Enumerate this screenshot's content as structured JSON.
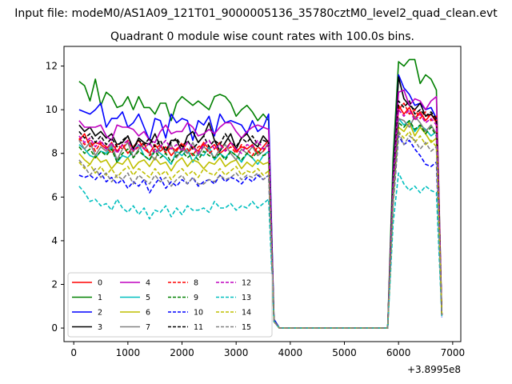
{
  "figure": {
    "suptitle": "Input file: modeM0/AS1A09_121T01_9000005136_35780cztM0_level2_quad_clean.evt"
  },
  "chart_data": {
    "type": "line",
    "title": "Quadrant 0 module wise count rates with 100.0s bins.",
    "xlabel": "",
    "ylabel": "",
    "x_offset_label": "+3.8995e8",
    "xlim": [
      -180,
      7150
    ],
    "ylim": [
      -0.62,
      12.9
    ],
    "xticks": [
      0,
      1000,
      2000,
      3000,
      4000,
      5000,
      6000,
      7000
    ],
    "yticks": [
      0,
      2,
      4,
      6,
      8,
      10,
      12
    ],
    "grid": false,
    "legend": {
      "placement": "lower-left",
      "columns": 4
    },
    "x": [
      100,
      200,
      300,
      400,
      500,
      600,
      700,
      800,
      900,
      1000,
      1100,
      1200,
      1300,
      1400,
      1500,
      1600,
      1700,
      1800,
      1900,
      2000,
      2100,
      2200,
      2300,
      2400,
      2500,
      2600,
      2700,
      2800,
      2900,
      3000,
      3100,
      3200,
      3300,
      3400,
      3500,
      3600,
      3700,
      3800,
      3900,
      4000,
      4100,
      4200,
      4300,
      4400,
      4500,
      4600,
      4700,
      4800,
      4900,
      5000,
      5100,
      5200,
      5300,
      5400,
      5500,
      5600,
      5700,
      5800,
      5900,
      6000,
      6100,
      6200,
      6300,
      6400,
      6500,
      6600,
      6700,
      6800
    ],
    "series": [
      {
        "name": "0",
        "color": "#ff0000",
        "dash": "solid",
        "values": [
          8.6,
          8.9,
          8.3,
          8.5,
          8.4,
          8.2,
          8.5,
          8.1,
          8.4,
          8.0,
          8.3,
          8.6,
          8.2,
          8.0,
          8.4,
          8.1,
          8.3,
          7.9,
          8.2,
          8.4,
          8.0,
          8.3,
          8.1,
          8.5,
          8.2,
          8.4,
          8.0,
          8.2,
          8.5,
          8.1,
          8.3,
          8.2,
          8.4,
          8.0,
          8.3,
          8.6,
          0.3,
          0.0,
          0.0,
          0.0,
          0.0,
          0.0,
          0.0,
          0.0,
          0.0,
          0.0,
          0.0,
          0.0,
          0.0,
          0.0,
          0.0,
          0.0,
          0.0,
          0.0,
          0.0,
          0.0,
          0.0,
          0.0,
          6.5,
          10.2,
          9.8,
          10.1,
          9.6,
          9.9,
          9.5,
          9.8,
          9.4,
          0.6
        ]
      },
      {
        "name": "1",
        "color": "#008000",
        "dash": "solid",
        "values": [
          11.3,
          11.1,
          10.4,
          11.4,
          10.2,
          10.8,
          10.6,
          10.1,
          10.2,
          10.6,
          10.0,
          10.6,
          10.1,
          10.1,
          9.8,
          10.3,
          10.3,
          9.5,
          10.3,
          10.6,
          10.4,
          10.2,
          10.4,
          10.2,
          10.0,
          10.6,
          10.7,
          10.6,
          10.3,
          9.7,
          10.0,
          10.2,
          9.9,
          9.5,
          9.8,
          9.5,
          0.4,
          0.0,
          0.0,
          0.0,
          0.0,
          0.0,
          0.0,
          0.0,
          0.0,
          0.0,
          0.0,
          0.0,
          0.0,
          0.0,
          0.0,
          0.0,
          0.0,
          0.0,
          0.0,
          0.0,
          0.0,
          0.0,
          7.8,
          12.2,
          12.0,
          12.3,
          12.3,
          11.2,
          11.6,
          11.4,
          10.9,
          0.6
        ]
      },
      {
        "name": "2",
        "color": "#0000ff",
        "dash": "solid",
        "values": [
          10.0,
          9.9,
          9.8,
          10.0,
          10.3,
          9.2,
          9.6,
          9.6,
          9.9,
          9.2,
          9.4,
          9.8,
          9.2,
          8.6,
          9.6,
          9.5,
          8.7,
          9.8,
          9.4,
          9.6,
          9.5,
          8.6,
          9.5,
          9.3,
          9.7,
          8.8,
          9.8,
          9.4,
          9.5,
          9.4,
          9.3,
          8.9,
          9.5,
          9.0,
          9.2,
          9.8,
          0.4,
          0.0,
          0.0,
          0.0,
          0.0,
          0.0,
          0.0,
          0.0,
          0.0,
          0.0,
          0.0,
          0.0,
          0.0,
          0.0,
          0.0,
          0.0,
          0.0,
          0.0,
          0.0,
          0.0,
          0.0,
          0.0,
          7.0,
          11.6,
          11.0,
          10.7,
          10.2,
          10.3,
          10.0,
          10.1,
          9.6,
          0.6
        ]
      },
      {
        "name": "3",
        "color": "#000000",
        "dash": "solid",
        "values": [
          9.3,
          9.0,
          9.2,
          8.8,
          9.0,
          8.7,
          8.9,
          8.4,
          8.5,
          8.8,
          8.2,
          8.7,
          8.5,
          8.4,
          8.9,
          8.3,
          8.1,
          8.6,
          8.6,
          8.1,
          8.8,
          9.0,
          8.5,
          8.8,
          9.4,
          8.6,
          8.1,
          8.5,
          8.9,
          8.2,
          8.7,
          8.9,
          8.5,
          8.3,
          8.8,
          8.5,
          0.3,
          0.0,
          0.0,
          0.0,
          0.0,
          0.0,
          0.0,
          0.0,
          0.0,
          0.0,
          0.0,
          0.0,
          0.0,
          0.0,
          0.0,
          0.0,
          0.0,
          0.0,
          0.0,
          0.0,
          0.0,
          0.0,
          6.9,
          11.5,
          10.5,
          10.2,
          10.0,
          10.3,
          9.7,
          9.8,
          9.5,
          0.6
        ]
      },
      {
        "name": "4",
        "color": "#bf00bf",
        "dash": "solid",
        "values": [
          9.5,
          9.2,
          9.2,
          9.2,
          9.3,
          8.8,
          8.6,
          9.3,
          9.2,
          9.2,
          9.1,
          8.8,
          9.0,
          8.6,
          8.5,
          9.0,
          9.3,
          8.9,
          9.0,
          9.0,
          9.4,
          9.2,
          8.8,
          8.9,
          9.1,
          8.9,
          9.2,
          9.4,
          9.4,
          9.0,
          8.7,
          9.0,
          9.2,
          9.3,
          9.2,
          9.1,
          0.3,
          0.0,
          0.0,
          0.0,
          0.0,
          0.0,
          0.0,
          0.0,
          0.0,
          0.0,
          0.0,
          0.0,
          0.0,
          0.0,
          0.0,
          0.0,
          0.0,
          0.0,
          0.0,
          0.0,
          0.0,
          0.0,
          6.8,
          10.8,
          10.9,
          10.2,
          10.5,
          10.4,
          10.0,
          10.4,
          10.6,
          0.6
        ]
      },
      {
        "name": "5",
        "color": "#00bfbf",
        "dash": "solid",
        "values": [
          8.4,
          8.2,
          7.9,
          7.8,
          8.1,
          8.0,
          8.3,
          7.6,
          7.9,
          7.8,
          8.1,
          8.4,
          7.9,
          7.7,
          8.2,
          8.0,
          7.8,
          7.5,
          8.1,
          7.9,
          8.2,
          7.6,
          8.0,
          7.9,
          8.3,
          7.7,
          8.0,
          7.8,
          8.1,
          7.9,
          7.6,
          8.0,
          7.8,
          7.5,
          7.9,
          8.1,
          0.3,
          0.0,
          0.0,
          0.0,
          0.0,
          0.0,
          0.0,
          0.0,
          0.0,
          0.0,
          0.0,
          0.0,
          0.0,
          0.0,
          0.0,
          0.0,
          0.0,
          0.0,
          0.0,
          0.0,
          0.0,
          0.0,
          6.0,
          9.6,
          9.3,
          9.5,
          9.0,
          9.3,
          9.1,
          8.8,
          9.0,
          0.6
        ]
      },
      {
        "name": "6",
        "color": "#bfbf00",
        "dash": "solid",
        "values": [
          8.0,
          7.7,
          7.5,
          7.9,
          7.6,
          7.7,
          7.3,
          7.6,
          7.5,
          7.8,
          7.3,
          7.6,
          7.7,
          7.4,
          7.8,
          7.5,
          7.6,
          7.2,
          7.6,
          7.8,
          7.4,
          7.7,
          7.6,
          7.3,
          7.6,
          7.5,
          7.8,
          7.4,
          7.6,
          7.7,
          7.3,
          7.6,
          7.4,
          7.7,
          7.5,
          7.6,
          0.3,
          0.0,
          0.0,
          0.0,
          0.0,
          0.0,
          0.0,
          0.0,
          0.0,
          0.0,
          0.0,
          0.0,
          0.0,
          0.0,
          0.0,
          0.0,
          0.0,
          0.0,
          0.0,
          0.0,
          0.0,
          0.0,
          5.9,
          9.2,
          9.0,
          9.4,
          8.8,
          9.2,
          8.9,
          8.5,
          8.7,
          0.6
        ]
      },
      {
        "name": "7",
        "color": "#808080",
        "dash": "solid",
        "values": [
          8.6,
          8.2,
          8.5,
          7.9,
          8.3,
          8.1,
          8.4,
          7.7,
          8.2,
          8.5,
          7.8,
          8.2,
          8.4,
          8.0,
          7.7,
          8.3,
          8.1,
          8.4,
          7.8,
          8.2,
          8.0,
          8.5,
          7.9,
          8.3,
          8.1,
          7.8,
          8.2,
          8.4,
          8.0,
          7.7,
          8.2,
          8.0,
          8.3,
          7.9,
          8.1,
          8.5,
          0.3,
          0.0,
          0.0,
          0.0,
          0.0,
          0.0,
          0.0,
          0.0,
          0.0,
          0.0,
          0.0,
          0.0,
          0.0,
          0.0,
          0.0,
          0.0,
          0.0,
          0.0,
          0.0,
          0.0,
          0.0,
          0.0,
          6.4,
          9.6,
          9.5,
          9.2,
          9.7,
          9.4,
          9.0,
          9.3,
          8.9,
          0.6
        ]
      },
      {
        "name": "8",
        "color": "#ff0000",
        "dash": "dashed",
        "values": [
          8.7,
          8.4,
          8.6,
          8.1,
          8.5,
          8.3,
          8.0,
          8.4,
          8.2,
          8.6,
          8.1,
          8.3,
          8.5,
          7.9,
          8.2,
          8.4,
          8.0,
          8.3,
          8.1,
          8.5,
          8.2,
          7.9,
          8.3,
          8.4,
          8.0,
          8.2,
          8.5,
          8.1,
          8.3,
          8.0,
          8.4,
          8.2,
          7.9,
          8.3,
          8.1,
          8.4,
          0.3,
          0.0,
          0.0,
          0.0,
          0.0,
          0.0,
          0.0,
          0.0,
          0.0,
          0.0,
          0.0,
          0.0,
          0.0,
          0.0,
          0.0,
          0.0,
          0.0,
          0.0,
          0.0,
          0.0,
          0.0,
          0.0,
          6.6,
          10.0,
          10.3,
          9.8,
          10.0,
          9.6,
          9.9,
          9.5,
          9.7,
          0.6
        ]
      },
      {
        "name": "9",
        "color": "#008000",
        "dash": "dashed",
        "values": [
          8.3,
          8.0,
          8.2,
          7.8,
          8.1,
          7.9,
          8.2,
          7.6,
          8.0,
          8.2,
          7.8,
          8.1,
          7.9,
          7.7,
          8.1,
          7.8,
          8.0,
          7.6,
          7.9,
          8.1,
          7.8,
          8.0,
          7.7,
          8.1,
          7.9,
          7.8,
          8.0,
          7.7,
          8.1,
          7.9,
          7.7,
          8.0,
          7.8,
          8.1,
          7.9,
          8.0,
          0.3,
          0.0,
          0.0,
          0.0,
          0.0,
          0.0,
          0.0,
          0.0,
          0.0,
          0.0,
          0.0,
          0.0,
          0.0,
          0.0,
          0.0,
          0.0,
          0.0,
          0.0,
          0.0,
          0.0,
          0.0,
          0.0,
          6.2,
          9.4,
          9.2,
          9.5,
          9.1,
          9.3,
          8.9,
          9.2,
          8.8,
          0.6
        ]
      },
      {
        "name": "10",
        "color": "#0000ff",
        "dash": "dashed",
        "values": [
          7.0,
          6.9,
          7.0,
          6.8,
          7.1,
          6.7,
          6.9,
          6.6,
          6.8,
          6.4,
          6.7,
          6.5,
          6.8,
          6.2,
          6.6,
          6.9,
          6.4,
          6.7,
          6.5,
          6.8,
          6.6,
          6.9,
          6.5,
          6.7,
          6.8,
          6.6,
          7.0,
          6.7,
          6.9,
          6.8,
          6.6,
          6.9,
          6.7,
          7.0,
          6.8,
          7.0,
          0.3,
          0.0,
          0.0,
          0.0,
          0.0,
          0.0,
          0.0,
          0.0,
          0.0,
          0.0,
          0.0,
          0.0,
          0.0,
          0.0,
          0.0,
          0.0,
          0.0,
          0.0,
          0.0,
          0.0,
          0.0,
          0.0,
          5.6,
          8.8,
          8.4,
          8.6,
          8.2,
          7.9,
          7.5,
          7.4,
          7.6,
          0.5
        ]
      },
      {
        "name": "11",
        "color": "#000000",
        "dash": "dashed",
        "values": [
          9.0,
          8.7,
          8.9,
          8.5,
          8.8,
          8.4,
          8.7,
          8.3,
          8.6,
          8.8,
          8.2,
          8.6,
          8.4,
          8.7,
          8.3,
          8.6,
          8.1,
          8.5,
          8.7,
          8.3,
          8.6,
          8.2,
          8.5,
          8.8,
          8.3,
          8.6,
          8.4,
          8.9,
          8.5,
          8.3,
          8.7,
          8.5,
          8.8,
          8.4,
          8.6,
          8.5,
          0.3,
          0.0,
          0.0,
          0.0,
          0.0,
          0.0,
          0.0,
          0.0,
          0.0,
          0.0,
          0.0,
          0.0,
          0.0,
          0.0,
          0.0,
          0.0,
          0.0,
          0.0,
          0.0,
          0.0,
          0.0,
          0.0,
          6.7,
          10.4,
          10.1,
          10.4,
          9.8,
          10.0,
          9.7,
          9.9,
          9.6,
          0.6
        ]
      },
      {
        "name": "12",
        "color": "#bf00bf",
        "dash": "dashed",
        "values": [
          8.8,
          8.5,
          8.7,
          8.3,
          8.6,
          8.2,
          8.5,
          8.0,
          8.4,
          8.6,
          8.1,
          8.4,
          8.2,
          8.5,
          8.0,
          8.3,
          8.6,
          8.2,
          8.4,
          8.1,
          8.5,
          8.3,
          8.0,
          8.4,
          8.6,
          8.2,
          8.4,
          8.1,
          8.5,
          8.2,
          8.0,
          8.4,
          8.3,
          8.6,
          8.2,
          8.4,
          0.3,
          0.0,
          0.0,
          0.0,
          0.0,
          0.0,
          0.0,
          0.0,
          0.0,
          0.0,
          0.0,
          0.0,
          0.0,
          0.0,
          0.0,
          0.0,
          0.0,
          0.0,
          0.0,
          0.0,
          0.0,
          0.0,
          6.5,
          10.0,
          9.7,
          10.0,
          9.5,
          9.8,
          9.4,
          9.6,
          9.3,
          0.6
        ]
      },
      {
        "name": "13",
        "color": "#00bfbf",
        "dash": "dashed",
        "values": [
          6.5,
          6.2,
          5.8,
          5.9,
          5.6,
          5.7,
          5.4,
          5.9,
          5.5,
          5.3,
          5.6,
          5.2,
          5.5,
          5.0,
          5.4,
          5.3,
          5.6,
          5.1,
          5.5,
          5.2,
          5.6,
          5.4,
          5.4,
          5.5,
          5.3,
          5.8,
          5.5,
          5.5,
          5.7,
          5.4,
          5.6,
          5.5,
          5.8,
          5.5,
          5.7,
          5.9,
          0.3,
          0.0,
          0.0,
          0.0,
          0.0,
          0.0,
          0.0,
          0.0,
          0.0,
          0.0,
          0.0,
          0.0,
          0.0,
          0.0,
          0.0,
          0.0,
          0.0,
          0.0,
          0.0,
          0.0,
          0.0,
          0.0,
          4.8,
          7.1,
          6.6,
          6.3,
          6.5,
          6.2,
          6.5,
          6.3,
          6.2,
          0.5
        ]
      },
      {
        "name": "14",
        "color": "#bfbf00",
        "dash": "dashed",
        "values": [
          7.6,
          7.3,
          7.5,
          7.1,
          7.4,
          7.0,
          7.3,
          6.9,
          7.2,
          7.4,
          7.0,
          7.3,
          7.1,
          6.9,
          7.3,
          7.0,
          7.2,
          6.8,
          7.1,
          7.3,
          7.0,
          7.2,
          6.9,
          7.3,
          7.1,
          7.0,
          7.3,
          7.0,
          7.2,
          7.4,
          7.0,
          7.2,
          7.1,
          7.3,
          7.0,
          7.2,
          0.3,
          0.0,
          0.0,
          0.0,
          0.0,
          0.0,
          0.0,
          0.0,
          0.0,
          0.0,
          0.0,
          0.0,
          0.0,
          0.0,
          0.0,
          0.0,
          0.0,
          0.0,
          0.0,
          0.0,
          0.0,
          0.0,
          5.7,
          9.0,
          8.7,
          9.0,
          8.5,
          8.8,
          8.4,
          8.6,
          8.3,
          0.6
        ]
      },
      {
        "name": "15",
        "color": "#808080",
        "dash": "dashed",
        "values": [
          7.7,
          7.4,
          7.0,
          7.3,
          6.9,
          7.1,
          6.7,
          7.0,
          6.8,
          7.1,
          6.6,
          7.0,
          6.8,
          6.6,
          7.0,
          6.7,
          6.9,
          6.5,
          6.8,
          7.0,
          6.6,
          6.9,
          6.6,
          6.6,
          6.8,
          6.7,
          7.0,
          6.8,
          6.9,
          7.1,
          6.8,
          7.0,
          6.9,
          7.1,
          6.8,
          7.0,
          0.3,
          0.0,
          0.0,
          0.0,
          0.0,
          0.0,
          0.0,
          0.0,
          0.0,
          0.0,
          0.0,
          0.0,
          0.0,
          0.0,
          0.0,
          0.0,
          0.0,
          0.0,
          0.0,
          0.0,
          0.0,
          0.0,
          5.9,
          9.0,
          8.4,
          8.8,
          8.6,
          8.2,
          8.5,
          8.1,
          8.3,
          0.6
        ]
      }
    ]
  }
}
